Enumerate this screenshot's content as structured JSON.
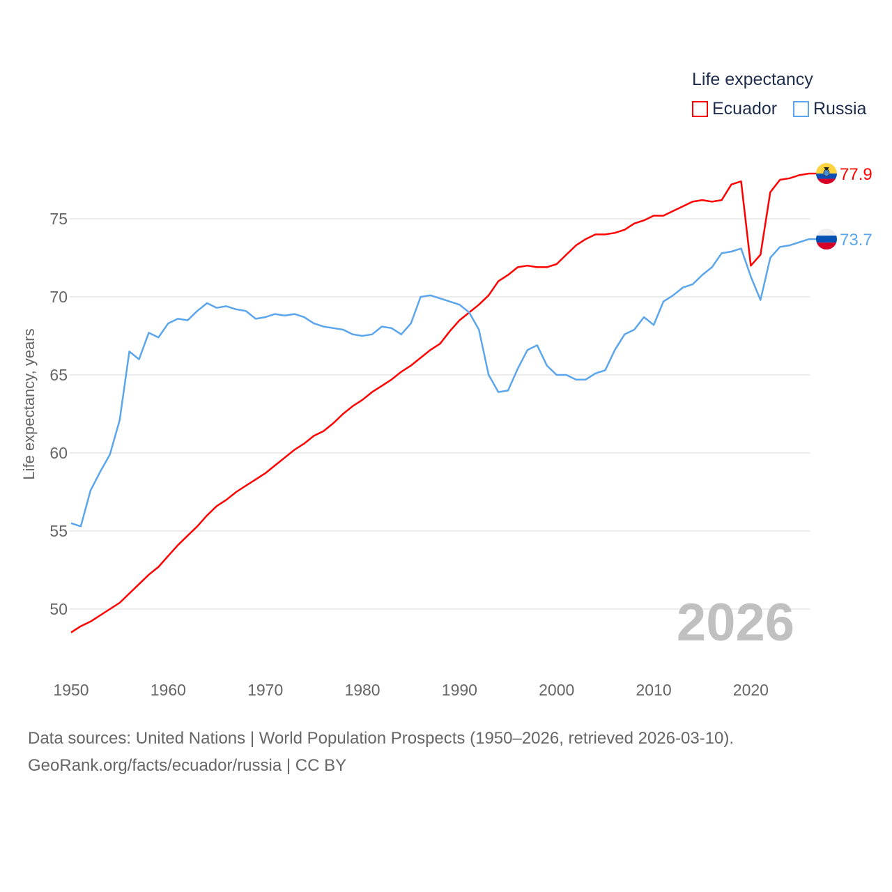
{
  "legend": {
    "title": "Life expectancy"
  },
  "current_year": "2026",
  "footer": {
    "line1": "Data sources: United Nations | World Population Prospects (1950–2026, retrieved 2026-03-10).",
    "line2": "GeoRank.org/facts/ecuador/russia | CC BY"
  },
  "chart_data": {
    "type": "line",
    "title": "Life expectancy",
    "xlabel": "",
    "ylabel": "Life expectancy, years",
    "xlim": [
      1950,
      2026
    ],
    "ylim": [
      47.5,
      79
    ],
    "xticks": [
      1950,
      1960,
      1970,
      1980,
      1990,
      2000,
      2010,
      2020
    ],
    "yticks": [
      50,
      55,
      60,
      65,
      70,
      75
    ],
    "grid": true,
    "legend_position": "top-right",
    "series": [
      {
        "name": "Ecuador",
        "color": "#ff0000",
        "end_label": "77.9",
        "flag": "ecuador-flag",
        "start_year": 1950,
        "values": [
          48.5,
          48.9,
          49.2,
          49.6,
          50.0,
          50.4,
          51.0,
          51.6,
          52.2,
          52.7,
          53.4,
          54.1,
          54.7,
          55.3,
          56.0,
          56.6,
          57.0,
          57.5,
          57.9,
          58.3,
          58.7,
          59.2,
          59.7,
          60.2,
          60.6,
          61.1,
          61.4,
          61.9,
          62.5,
          63.0,
          63.4,
          63.9,
          64.3,
          64.7,
          65.2,
          65.6,
          66.1,
          66.6,
          67.0,
          67.8,
          68.5,
          69.0,
          69.5,
          70.1,
          71.0,
          71.4,
          71.9,
          72.0,
          71.9,
          71.9,
          72.1,
          72.7,
          73.3,
          73.7,
          74.0,
          74.0,
          74.1,
          74.3,
          74.7,
          74.9,
          75.2,
          75.2,
          75.5,
          75.8,
          76.1,
          76.2,
          76.1,
          76.2,
          77.2,
          77.4,
          72.0,
          72.7,
          76.7,
          77.5,
          77.6,
          77.8,
          77.9
        ]
      },
      {
        "name": "Russia",
        "color": "#5aa5ec",
        "end_label": "73.7",
        "flag": "russia-flag",
        "start_year": 1950,
        "values": [
          55.5,
          55.3,
          57.6,
          58.8,
          59.9,
          62.1,
          66.5,
          66.0,
          67.7,
          67.4,
          68.3,
          68.6,
          68.5,
          69.1,
          69.6,
          69.3,
          69.4,
          69.2,
          69.1,
          68.6,
          68.7,
          68.9,
          68.8,
          68.9,
          68.7,
          68.3,
          68.1,
          68.0,
          67.9,
          67.6,
          67.5,
          67.6,
          68.1,
          68.0,
          67.6,
          68.3,
          70.0,
          70.1,
          69.9,
          69.7,
          69.5,
          69.0,
          67.9,
          65.0,
          63.9,
          64.0,
          65.4,
          66.6,
          66.9,
          65.6,
          65.0,
          65.0,
          64.7,
          64.7,
          65.1,
          65.3,
          66.6,
          67.6,
          67.9,
          68.7,
          68.2,
          69.7,
          70.1,
          70.6,
          70.8,
          71.4,
          71.9,
          72.8,
          72.9,
          73.1,
          71.3,
          69.8,
          72.5,
          73.2,
          73.3,
          73.5,
          73.7
        ]
      }
    ]
  }
}
